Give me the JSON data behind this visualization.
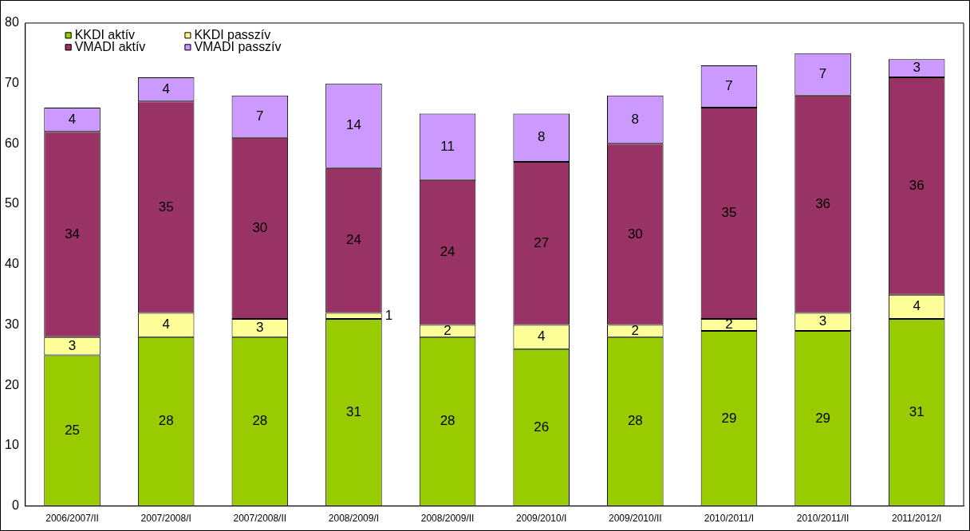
{
  "chart_data": {
    "type": "bar",
    "stacked": true,
    "categories": [
      "2006/2007/II",
      "2007/2008/I",
      "2007/2008/II",
      "2008/2009/I",
      "2008/2009/II",
      "2009/2010/I",
      "2009/2010/II",
      "2010/2011/I",
      "2010/2011/II",
      "2011/2012/I"
    ],
    "series": [
      {
        "name": "KKDI aktív",
        "color": "#99cc00",
        "values": [
          25,
          28,
          28,
          31,
          28,
          26,
          28,
          29,
          29,
          31
        ]
      },
      {
        "name": "KKDI passzív",
        "color": "#ffff99",
        "values": [
          3,
          4,
          3,
          1,
          2,
          4,
          2,
          2,
          3,
          4
        ]
      },
      {
        "name": "VMADI aktív",
        "color": "#993366",
        "values": [
          34,
          35,
          30,
          24,
          24,
          27,
          30,
          35,
          36,
          36
        ]
      },
      {
        "name": "VMADI passzív",
        "color": "#cc99ff",
        "values": [
          4,
          4,
          7,
          14,
          11,
          8,
          8,
          7,
          7,
          3
        ]
      }
    ],
    "ylim": [
      0,
      80
    ],
    "yticks": [
      0,
      10,
      20,
      30,
      40,
      50,
      60,
      70,
      80
    ],
    "grid": false,
    "legend": "top left",
    "data_labels": true
  }
}
